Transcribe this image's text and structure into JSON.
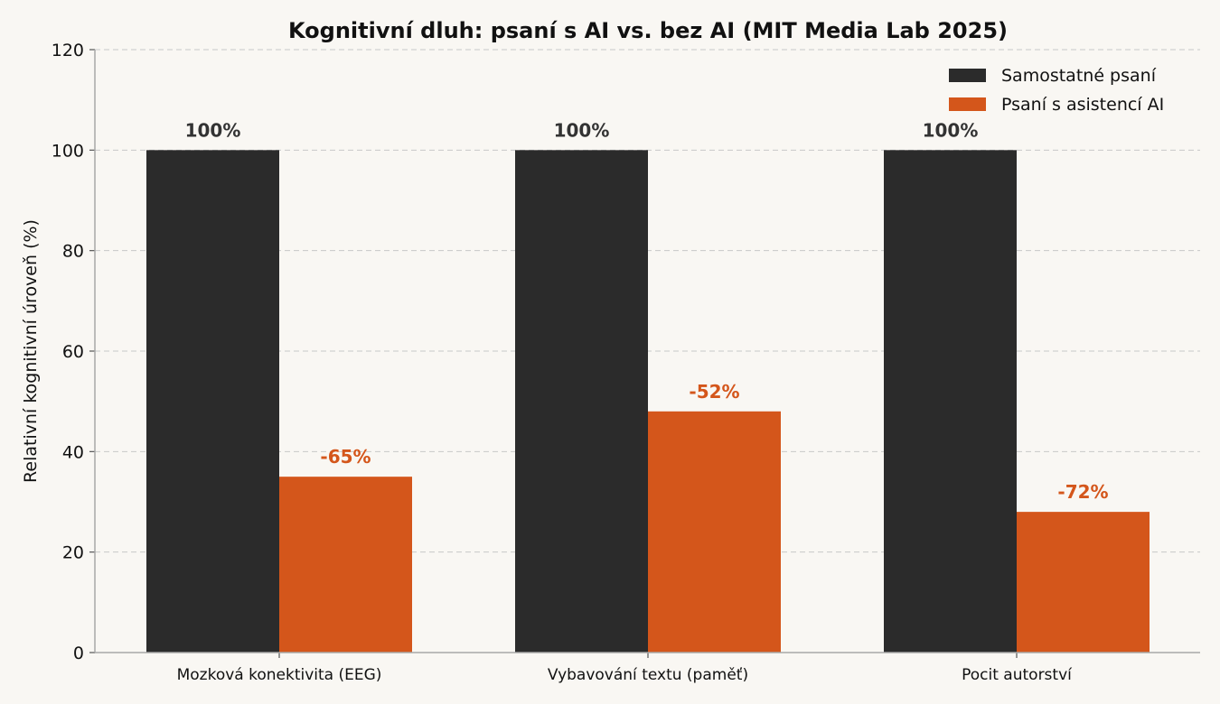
{
  "chart_data": {
    "type": "bar",
    "title": "Kognitivní dluh: psaní s AI vs. bez AI (MIT Media Lab 2025)",
    "xlabel": "",
    "ylabel": "Relativní kognitivní úroveň (%)",
    "ylim": [
      0,
      120
    ],
    "yticks": [
      0,
      20,
      40,
      60,
      80,
      100,
      120
    ],
    "grid": true,
    "legend_position": "top-right",
    "categories": [
      "Mozková konektivita (EEG)",
      "Vybavování textu (paměť)",
      "Pocit autorství"
    ],
    "series": [
      {
        "name": "Samostatné psaní",
        "color": "#2b2b2b",
        "values": [
          100,
          100,
          100
        ],
        "labels": [
          "100%",
          "100%",
          "100%"
        ]
      },
      {
        "name": "Psaní s asistencí AI",
        "color": "#d4561b",
        "values": [
          35,
          48,
          28
        ],
        "labels": [
          "-65%",
          "-52%",
          "-72%"
        ]
      }
    ]
  }
}
